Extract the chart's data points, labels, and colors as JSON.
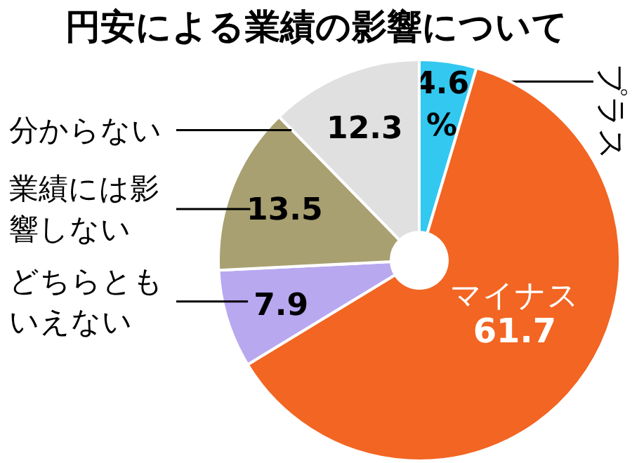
{
  "chart_data": {
    "type": "donut",
    "title": "円安による業績の影響について",
    "categories": [
      "プラス",
      "マイナス",
      "どちらともいえない",
      "業績には影響しない",
      "分からない"
    ],
    "values": [
      4.6,
      61.7,
      7.9,
      13.5,
      12.3
    ],
    "colors": [
      "#33c8f0",
      "#f26522",
      "#b8a8f0",
      "#a8a070",
      "#e0e0e0"
    ],
    "value_labels": [
      "4.6\n%",
      "61.7",
      "7.9",
      "13.5",
      "12.3"
    ]
  }
}
